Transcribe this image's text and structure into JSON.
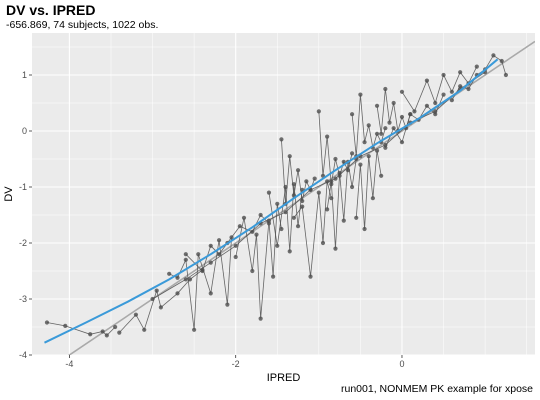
{
  "chart_data": {
    "type": "scatter",
    "title": "DV vs. IPRED",
    "subtitle": "-656.869, 74 subjects, 1022 obs.",
    "caption": "run001, NONMEM PK example for xpose",
    "xlabel": "IPRED",
    "ylabel": "DV",
    "xlim": [
      -4.45,
      1.6
    ],
    "ylim": [
      -4.0,
      1.75
    ],
    "x_ticks": [
      -4,
      -2,
      0
    ],
    "y_ticks": [
      -4,
      -3,
      -2,
      -1,
      0,
      1
    ],
    "grid": true,
    "legend": "none",
    "identity_line": {
      "slope": 1,
      "intercept": 0,
      "color": "#a9a9a9"
    },
    "smooth_line": {
      "color": "#3a9ad9",
      "x": [
        -4.3,
        -3.8,
        -3.3,
        -2.8,
        -2.3,
        -1.8,
        -1.3,
        -0.8,
        -0.3,
        0.2,
        0.7,
        1.15
      ],
      "y": [
        -3.78,
        -3.42,
        -3.05,
        -2.65,
        -2.2,
        -1.72,
        -1.2,
        -0.7,
        -0.22,
        0.22,
        0.72,
        1.28
      ]
    },
    "series": [
      {
        "x": [
          -4.27,
          -4.05,
          -3.75,
          -3.6,
          -3.55,
          -3.45
        ],
        "y": [
          -3.42,
          -3.48,
          -3.63,
          -3.58,
          -3.65,
          -3.5
        ],
        "color": "#4d4d4d"
      },
      {
        "x": [
          -3.4,
          -3.2,
          -3.1,
          -2.95,
          -2.9,
          -2.7,
          -2.55,
          -2.4
        ],
        "y": [
          -3.6,
          -3.28,
          -3.55,
          -2.85,
          -3.15,
          -2.9,
          -2.65,
          -2.48
        ],
        "color": "#4d4d4d"
      },
      {
        "x": [
          -2.8,
          -2.7,
          -2.6,
          -2.5,
          -2.45,
          -2.3,
          -2.2,
          -2.1,
          -2.05
        ],
        "y": [
          -2.55,
          -2.62,
          -2.3,
          -3.55,
          -2.2,
          -2.9,
          -1.95,
          -3.1,
          -1.9
        ],
        "color": "#4d4d4d"
      },
      {
        "x": [
          -2.6,
          -2.4,
          -2.3,
          -2.2,
          -2.1,
          -1.95,
          -1.8,
          -1.7,
          -1.6
        ],
        "y": [
          -2.2,
          -2.5,
          -2.05,
          -2.2,
          -2.0,
          -1.7,
          -1.8,
          -1.5,
          -1.65
        ],
        "color": "#4d4d4d"
      },
      {
        "x": [
          -2.0,
          -1.9,
          -1.8,
          -1.75,
          -1.7,
          -1.6,
          -1.55,
          -1.5,
          -1.45
        ],
        "y": [
          -2.25,
          -1.55,
          -2.5,
          -1.85,
          -3.35,
          -1.6,
          -2.6,
          -1.3,
          -1.75
        ],
        "color": "#4d4d4d"
      },
      {
        "x": [
          -1.45,
          -1.4,
          -1.35,
          -1.3,
          -1.25,
          -1.2,
          -1.15,
          -1.1,
          -1.05
        ],
        "y": [
          -0.15,
          -1.3,
          -0.45,
          -1.15,
          -0.7,
          -1.25,
          -0.9,
          -1.05,
          -0.85
        ],
        "color": "#4d4d4d"
      },
      {
        "x": [
          -1.3,
          -1.2,
          -1.1,
          -1.0,
          -0.95,
          -0.9,
          -0.85
        ],
        "y": [
          -1.55,
          -1.35,
          -2.6,
          -1.1,
          -2.0,
          -0.9,
          -1.2
        ],
        "color": "#4d4d4d"
      },
      {
        "x": [
          -1.0,
          -0.95,
          -0.9,
          -0.85,
          -0.8,
          -0.75,
          -0.7,
          -0.65,
          -0.6
        ],
        "y": [
          0.35,
          -0.8,
          -0.1,
          -0.95,
          -0.5,
          -0.8,
          -0.55,
          -0.7,
          -0.4
        ],
        "color": "#4d4d4d"
      },
      {
        "x": [
          -0.9,
          -0.85,
          -0.8,
          -0.75,
          -0.7,
          -0.65,
          -0.6,
          -0.55
        ],
        "y": [
          -1.4,
          -0.9,
          -2.1,
          -0.75,
          -1.6,
          -0.55,
          -1.0,
          -0.5
        ],
        "color": "#4d4d4d"
      },
      {
        "x": [
          -0.6,
          -0.55,
          -0.5,
          -0.45,
          -0.4,
          -0.35,
          -0.3,
          -0.25,
          -0.2
        ],
        "y": [
          0.3,
          -0.45,
          0.65,
          -0.2,
          0.1,
          -0.3,
          -0.05,
          -0.2,
          0.05
        ],
        "color": "#4d4d4d"
      },
      {
        "x": [
          -0.55,
          -0.5,
          -0.45,
          -0.4,
          -0.35,
          -0.3,
          -0.25
        ],
        "y": [
          -1.55,
          -0.6,
          -1.75,
          -0.45,
          -1.2,
          -0.35,
          -0.8
        ],
        "color": "#4d4d4d"
      },
      {
        "x": [
          -0.3,
          -0.25,
          -0.2,
          -0.15,
          -0.1,
          -0.05,
          0.0,
          0.05,
          0.1
        ],
        "y": [
          0.45,
          -0.05,
          0.75,
          0.15,
          0.5,
          0.0,
          0.25,
          0.05,
          0.3
        ],
        "color": "#4d4d4d"
      },
      {
        "x": [
          -0.2,
          -0.1,
          0.0,
          0.1,
          0.2,
          0.3,
          0.4,
          0.5
        ],
        "y": [
          -0.3,
          0.05,
          -0.2,
          0.3,
          0.2,
          0.45,
          0.3,
          0.65
        ],
        "color": "#4d4d4d"
      },
      {
        "x": [
          0.0,
          0.15,
          0.3,
          0.4,
          0.5,
          0.6,
          0.7,
          0.8,
          0.9
        ],
        "y": [
          0.7,
          0.35,
          0.9,
          0.5,
          1.0,
          0.7,
          1.05,
          0.85,
          1.15
        ],
        "color": "#4d4d4d"
      },
      {
        "x": [
          0.6,
          0.7,
          0.8,
          0.9,
          1.0,
          1.1,
          1.2,
          1.25
        ],
        "y": [
          0.55,
          0.8,
          0.75,
          1.0,
          1.1,
          1.35,
          1.25,
          1.0
        ],
        "color": "#4d4d4d"
      },
      {
        "x": [
          -3.0,
          -2.6,
          -2.3,
          -2.0,
          -1.7,
          -1.4,
          -1.1,
          -0.8,
          -0.5,
          -0.2,
          0.1,
          0.4,
          0.7,
          1.0
        ],
        "y": [
          -3.0,
          -2.65,
          -2.35,
          -2.05,
          -1.65,
          -1.45,
          -1.05,
          -0.85,
          -0.45,
          -0.25,
          0.15,
          0.35,
          0.75,
          1.05
        ],
        "color": "#4d4d4d"
      },
      {
        "x": [
          -1.6,
          -1.5,
          -1.4,
          -1.35,
          -1.3,
          -1.25,
          -1.2
        ],
        "y": [
          -1.1,
          -2.05,
          -1.0,
          -2.15,
          -0.95,
          -1.7,
          -1.05
        ],
        "color": "#4d4d4d"
      }
    ]
  }
}
